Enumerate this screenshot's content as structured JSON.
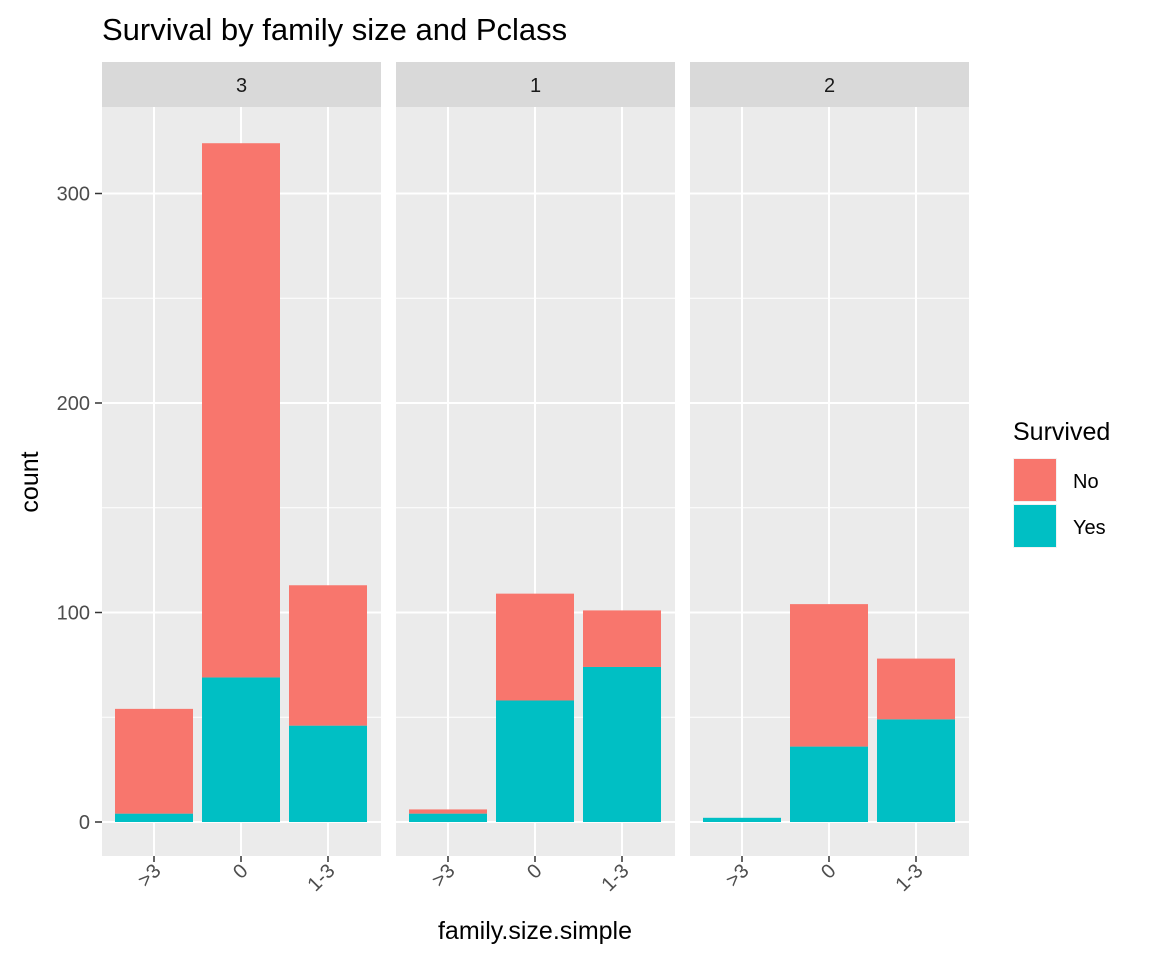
{
  "chart_data": {
    "type": "bar",
    "stacked": true,
    "title": "Survival by family size and Pclass",
    "xlabel": "family.size.simple",
    "ylabel": "count",
    "ylim": [
      0,
      340
    ],
    "y_ticks": [
      0,
      100,
      200,
      300
    ],
    "categories": [
      ">3",
      "0",
      "1-3"
    ],
    "legend": {
      "title": "Survived",
      "position": "right",
      "entries": [
        {
          "name": "No",
          "color": "#F8766D"
        },
        {
          "name": "Yes",
          "color": "#00BFC4"
        }
      ]
    },
    "facets": [
      {
        "label": "3",
        "series": [
          {
            "name": "Yes",
            "values": [
              4,
              69,
              46
            ]
          },
          {
            "name": "No",
            "values": [
              50,
              255,
              67
            ]
          }
        ]
      },
      {
        "label": "1",
        "series": [
          {
            "name": "Yes",
            "values": [
              4,
              58,
              74
            ]
          },
          {
            "name": "No",
            "values": [
              2,
              51,
              27
            ]
          }
        ]
      },
      {
        "label": "2",
        "series": [
          {
            "name": "Yes",
            "values": [
              2,
              36,
              49
            ]
          },
          {
            "name": "No",
            "values": [
              0,
              68,
              29
            ]
          }
        ]
      }
    ],
    "grid": true,
    "background": "#EBEBEB",
    "strip_background": "#D9D9D9"
  }
}
